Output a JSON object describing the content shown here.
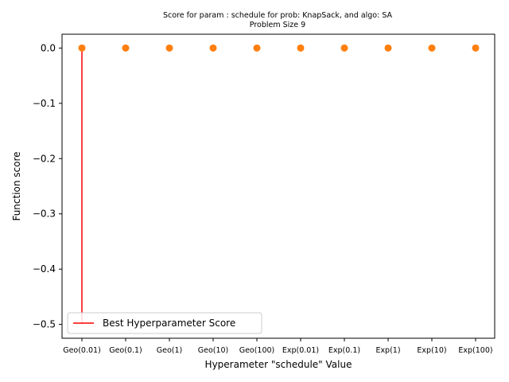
{
  "chart_data": {
    "type": "scatter",
    "title": "Score for param : schedule for prob: KnapSack, and algo: SA",
    "subtitle": "Problem Size 9",
    "xlabel": "Hyperameter \"schedule\" Value",
    "ylabel": "Function score",
    "categories": [
      "Geo(0.01)",
      "Geo(0.1)",
      "Geo(1)",
      "Geo(10)",
      "Geo(100)",
      "Exp(0.01)",
      "Exp(0.1)",
      "Exp(1)",
      "Exp(10)",
      "Exp(100)"
    ],
    "series": [
      {
        "values": [
          0,
          0,
          0,
          0,
          0,
          0,
          0,
          0,
          0,
          0
        ],
        "color": "#ff7f0e"
      }
    ],
    "best_line": {
      "name": "Best Hyperparameter Score",
      "category": "Geo(0.01)",
      "from": -0.5,
      "to": 0.0,
      "color": "#ff0000"
    },
    "ylim": [
      -0.525,
      0.025
    ],
    "yticks": [
      0.0,
      -0.1,
      -0.2,
      -0.3,
      -0.4,
      -0.5
    ],
    "ytick_labels": [
      "0.0",
      "−0.1",
      "−0.2",
      "−0.3",
      "−0.4",
      "−0.5"
    ],
    "grid": false,
    "legend_position": "lower-left"
  }
}
